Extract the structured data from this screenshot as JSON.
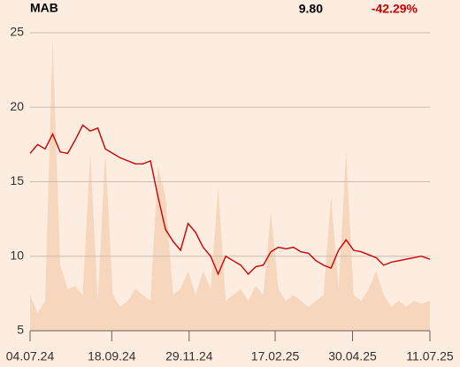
{
  "chart_data": {
    "type": "line",
    "title": "MAB",
    "annotations": [
      "9.80",
      "-42.29%"
    ],
    "annotation_colors": [
      "#000000",
      "#cc0000"
    ],
    "x": [
      "2024-07-04",
      "2024-07-11",
      "2024-07-18",
      "2024-07-25",
      "2024-08-01",
      "2024-08-08",
      "2024-08-15",
      "2024-08-22",
      "2024-08-29",
      "2024-09-05",
      "2024-09-12",
      "2024-09-19",
      "2024-09-26",
      "2024-10-03",
      "2024-10-10",
      "2024-10-17",
      "2024-10-24",
      "2024-10-31",
      "2024-11-07",
      "2024-11-14",
      "2024-11-21",
      "2024-11-28",
      "2024-12-05",
      "2024-12-12",
      "2024-12-19",
      "2024-12-26",
      "2025-01-02",
      "2025-01-09",
      "2025-01-16",
      "2025-01-23",
      "2025-01-30",
      "2025-02-06",
      "2025-02-13",
      "2025-02-20",
      "2025-02-27",
      "2025-03-06",
      "2025-03-13",
      "2025-03-20",
      "2025-03-27",
      "2025-04-03",
      "2025-04-10",
      "2025-04-17",
      "2025-04-24",
      "2025-05-01",
      "2025-05-08",
      "2025-05-15",
      "2025-05-22",
      "2025-05-29",
      "2025-06-05",
      "2025-06-12",
      "2025-06-19",
      "2025-06-26",
      "2025-07-03",
      "2025-07-11"
    ],
    "series": [
      {
        "color": "#cc0000",
        "values": [
          16.9,
          17.5,
          17.2,
          18.2,
          17.0,
          16.9,
          17.8,
          18.8,
          18.4,
          18.6,
          17.2,
          16.9,
          16.6,
          16.4,
          16.2,
          16.2,
          16.4,
          14.0,
          11.8,
          11.0,
          10.4,
          12.2,
          11.6,
          10.6,
          10.0,
          8.8,
          10.0,
          9.7,
          9.4,
          8.8,
          9.3,
          9.4,
          10.3,
          10.6,
          10.5,
          10.6,
          10.3,
          10.2,
          9.7,
          9.4,
          9.2,
          10.4,
          11.1,
          10.4,
          10.3,
          10.1,
          9.9,
          9.4,
          9.6,
          9.7,
          9.8,
          9.9,
          10.0,
          9.8
        ]
      },
      {
        "type": "area",
        "axis": "y2",
        "color": "#f6d6bd",
        "values": [
          12,
          6,
          10,
          98,
          22,
          14,
          15,
          12,
          60,
          10,
          60,
          12,
          8,
          10,
          14,
          12,
          10,
          55,
          45,
          12,
          14,
          20,
          12,
          20,
          14,
          48,
          10,
          12,
          14,
          10,
          15,
          12,
          40,
          14,
          10,
          12,
          10,
          8,
          10,
          12,
          45,
          14,
          60,
          12,
          10,
          14,
          20,
          12,
          8,
          10,
          8,
          10,
          9,
          10
        ]
      }
    ],
    "xlim": [
      "2024-07-04",
      "2025-07-11"
    ],
    "xticks": [
      {
        "value": "2024-07-04",
        "label": "04.07.24"
      },
      {
        "value": "2024-09-18",
        "label": "18.09.24"
      },
      {
        "value": "2024-11-29",
        "label": "29.11.24"
      },
      {
        "value": "2025-02-17",
        "label": "17.02.25"
      },
      {
        "value": "2025-04-30",
        "label": "30.04.25"
      },
      {
        "value": "2025-07-11",
        "label": "11.07.25"
      }
    ],
    "ylim": [
      5,
      25
    ],
    "yticks": [
      5,
      10,
      15,
      20,
      25
    ],
    "y2lim": [
      0,
      100
    ],
    "grid": true
  }
}
